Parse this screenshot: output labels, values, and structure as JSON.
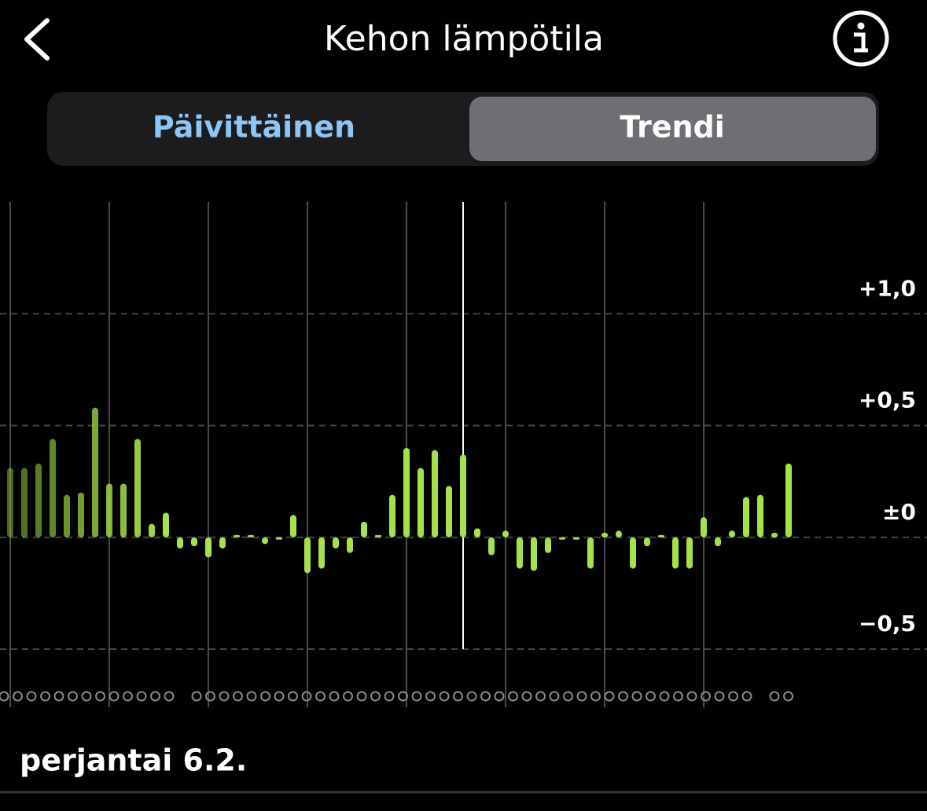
{
  "header": {
    "title": "Kehon lämpötila"
  },
  "tabs": [
    "Päivittäinen",
    "Trendi"
  ],
  "chart_data": {
    "type": "bar",
    "values": [
      0.31,
      0.31,
      0.33,
      0.44,
      0.19,
      0.2,
      0.58,
      0.24,
      0.24,
      0.44,
      0.06,
      0.11,
      -0.05,
      -0.04,
      -0.09,
      -0.05,
      0.01,
      0.01,
      -0.03,
      -0.01,
      0.1,
      -0.16,
      -0.14,
      -0.05,
      -0.07,
      0.07,
      0.01,
      0.19,
      0.4,
      0.31,
      0.39,
      0.23,
      0.37,
      0.04,
      -0.08,
      0.03,
      -0.14,
      -0.15,
      -0.07,
      -0.01,
      -0.01,
      -0.14,
      0.02,
      0.03,
      -0.14,
      -0.04,
      0.01,
      -0.14,
      -0.14,
      0.09,
      -0.04,
      0.03,
      0.18,
      0.19,
      0.02,
      0.33
    ],
    "color": "#a6e04a",
    "ylim": [
      -0.5,
      1.5
    ],
    "yticks": [
      {
        "value": 1.0,
        "label": "+1,0"
      },
      {
        "value": 0.5,
        "label": "+0,5"
      },
      {
        "value": 0,
        "label": "±0"
      },
      {
        "value": -0.5,
        "label": "−0,5"
      }
    ],
    "grid": true,
    "selected_index": 32
  },
  "footer": {
    "date": "perjantai 6.2."
  }
}
